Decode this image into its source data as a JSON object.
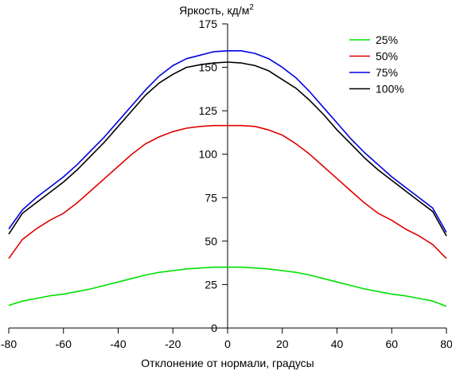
{
  "chart_data": {
    "type": "line",
    "title": "Яркость, кд/м",
    "title_superscript": "2",
    "xlabel": "Отклонение от нормали, градусы",
    "ylabel": "",
    "xlim": [
      -80,
      80
    ],
    "ylim": [
      0,
      175
    ],
    "x_ticks": [
      -80,
      -60,
      -40,
      -20,
      0,
      20,
      40,
      60,
      80
    ],
    "y_ticks": [
      0,
      25,
      50,
      75,
      100,
      125,
      150,
      175
    ],
    "grid": false,
    "legend_position": "top-right",
    "x": [
      -80,
      -75,
      -70,
      -65,
      -60,
      -55,
      -50,
      -45,
      -40,
      -35,
      -30,
      -25,
      -20,
      -15,
      -10,
      -5,
      0,
      5,
      10,
      15,
      20,
      25,
      30,
      35,
      40,
      45,
      50,
      55,
      60,
      65,
      70,
      75,
      80
    ],
    "series": [
      {
        "name": "25%",
        "color": "#00e000",
        "values": [
          13,
          15.5,
          17,
          18.5,
          19.5,
          21,
          22.5,
          24.5,
          26.5,
          28.5,
          30.5,
          32,
          33,
          34,
          34.5,
          35,
          35,
          35,
          34.5,
          34,
          33,
          32,
          30.5,
          28.5,
          26.5,
          24.5,
          22.5,
          21,
          19.5,
          18.5,
          17,
          15.5,
          12.5
        ]
      },
      {
        "name": "50%",
        "color": "#e00000",
        "values": [
          40,
          51,
          57,
          62,
          66,
          72,
          79,
          86,
          93,
          100,
          106,
          110,
          113,
          115,
          116,
          116.5,
          116.5,
          116.5,
          116,
          114,
          111,
          106,
          100,
          93,
          86,
          79,
          72,
          66,
          62,
          57,
          53,
          48,
          40
        ]
      },
      {
        "name": "75%",
        "color": "#0000e0",
        "values": [
          57,
          68,
          75,
          81,
          87,
          94,
          102,
          110,
          119,
          128,
          137,
          145,
          151,
          155,
          157,
          159,
          159.5,
          159.5,
          158,
          155,
          150,
          144,
          136,
          127,
          118,
          109,
          101,
          94,
          87,
          81,
          75,
          69,
          55
        ]
      },
      {
        "name": "100%",
        "color": "#000000",
        "values": [
          54,
          66,
          72,
          78,
          84,
          91,
          99,
          107,
          116,
          125,
          134,
          141,
          146,
          150,
          151.5,
          152.5,
          153,
          152.5,
          151,
          148,
          143,
          138,
          131,
          123,
          114,
          106,
          98,
          91,
          85,
          79,
          73,
          67,
          53
        ]
      }
    ]
  }
}
